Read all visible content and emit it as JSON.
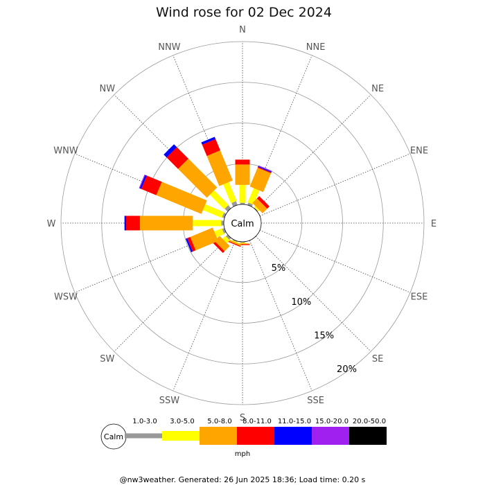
{
  "chart_data": {
    "type": "wind-rose",
    "title": "Wind rose for 02 Dec 2024",
    "directions": [
      "N",
      "NNE",
      "NE",
      "ENE",
      "E",
      "ESE",
      "SE",
      "SSE",
      "S",
      "SSW",
      "SW",
      "WSW",
      "W",
      "WNW",
      "NW",
      "NNW"
    ],
    "ring_labels": [
      "5%",
      "10%",
      "15%",
      "20%"
    ],
    "ring_values": [
      5,
      10,
      15,
      20
    ],
    "rlim": [
      0,
      20
    ],
    "calm_label": "Calm",
    "units": "mph",
    "bins": [
      {
        "label": "1.0-3.0",
        "color": "#999999"
      },
      {
        "label": "3.0-5.0",
        "color": "#ffff00"
      },
      {
        "label": "5.0-8.0",
        "color": "#ffa500"
      },
      {
        "label": "8.0-11.0",
        "color": "#ff0000"
      },
      {
        "label": "11.0-15.0",
        "color": "#0000ff"
      },
      {
        "label": "15.0-20.0",
        "color": "#a020f0"
      },
      {
        "label": "20.0-50.0",
        "color": "#000000"
      }
    ],
    "series": [
      {
        "direction": "N",
        "values": [
          0.2,
          2.2,
          2.5,
          0.6,
          0,
          0,
          0
        ]
      },
      {
        "direction": "NNE",
        "values": [
          0.3,
          1.9,
          2.5,
          0.1,
          0.1,
          0.1,
          0
        ]
      },
      {
        "direction": "NE",
        "values": [
          0.1,
          0.2,
          0.8,
          0.4,
          0,
          0,
          0
        ]
      },
      {
        "direction": "ENE",
        "values": [
          0,
          0,
          0,
          0,
          0,
          0,
          0
        ]
      },
      {
        "direction": "E",
        "values": [
          0,
          0,
          0,
          0,
          0,
          0,
          0
        ]
      },
      {
        "direction": "ESE",
        "values": [
          0,
          0,
          0,
          0,
          0,
          0,
          0
        ]
      },
      {
        "direction": "SE",
        "values": [
          0,
          0,
          0,
          0,
          0,
          0,
          0
        ]
      },
      {
        "direction": "SSE",
        "values": [
          0,
          0,
          0,
          0,
          0,
          0,
          0
        ]
      },
      {
        "direction": "S",
        "values": [
          0.1,
          0.1,
          0.1,
          0.1,
          0,
          0,
          0
        ]
      },
      {
        "direction": "SSW",
        "values": [
          0.1,
          0.1,
          0.2,
          0.1,
          0,
          0,
          0
        ]
      },
      {
        "direction": "SW",
        "values": [
          0.3,
          0.5,
          0.9,
          0.3,
          0,
          0,
          0
        ]
      },
      {
        "direction": "WSW",
        "values": [
          0.3,
          1.0,
          3.0,
          0.4,
          0.2,
          0,
          0
        ]
      },
      {
        "direction": "W",
        "values": [
          0.3,
          3.5,
          6.5,
          1.7,
          0.2,
          0,
          0
        ]
      },
      {
        "direction": "WNW",
        "values": [
          0.3,
          2.5,
          6.0,
          2.0,
          0.2,
          0.1,
          0
        ]
      },
      {
        "direction": "NW",
        "values": [
          0.5,
          2.5,
          5.0,
          2.0,
          0.5,
          0,
          0
        ]
      },
      {
        "direction": "NNW",
        "values": [
          0.5,
          2.5,
          4.0,
          1.5,
          0.3,
          0,
          0
        ]
      }
    ]
  },
  "footer": "@nw3weather. Generated: 26 Jun 2025 18:36; Load time: 0.20 s",
  "legend_calm": "Calm",
  "legend_units": "mph"
}
